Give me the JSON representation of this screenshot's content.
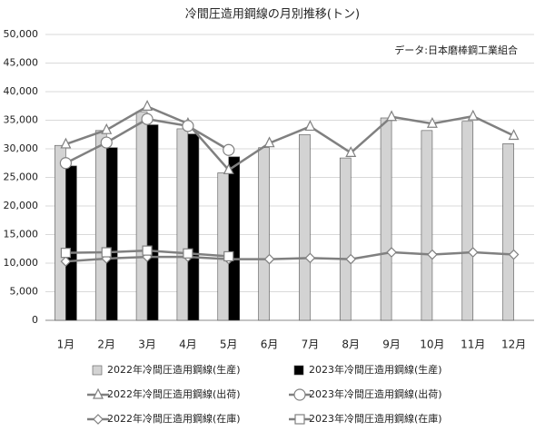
{
  "chart_data": {
    "type": "bar",
    "title": "冷間圧造用鋼線の月別推移(トン)",
    "annotation": "データ:日本磨棒鋼工業組合",
    "categories": [
      "1月",
      "2月",
      "3月",
      "4月",
      "5月",
      "6月",
      "7月",
      "8月",
      "9月",
      "10月",
      "11月",
      "12月"
    ],
    "ylim": [
      0,
      50000
    ],
    "yticks": [
      0,
      {
        "value": 5000,
        "label": "5,000"
      },
      {
        "value": 10000,
        "label": "10,000"
      },
      {
        "value": 15000,
        "label": "15,000"
      },
      {
        "value": 20000,
        "label": "20,000"
      },
      {
        "value": 25000,
        "label": "25,000"
      },
      {
        "value": 30000,
        "label": "30,000"
      },
      {
        "value": 35000,
        "label": "35,000"
      },
      {
        "value": 40000,
        "label": "40,000"
      },
      {
        "value": 45000,
        "label": "45,000"
      },
      {
        "value": 50000,
        "label": "50,000"
      }
    ],
    "grid": true,
    "legend": "bottom",
    "series": [
      {
        "name": "2022年冷間圧造用鋼線(生産)",
        "type": "bar",
        "color": "#d3d3d3",
        "values": [
          30600,
          33200,
          36500,
          33500,
          25800,
          30200,
          32500,
          28400,
          35400,
          33200,
          34800,
          30900
        ]
      },
      {
        "name": "2023年冷間圧造用鋼線(生産)",
        "type": "bar",
        "color": "#000000",
        "values": [
          27000,
          30200,
          34200,
          32600,
          28600,
          null,
          null,
          null,
          null,
          null,
          null,
          null
        ]
      },
      {
        "name": "2022年冷間圧造用鋼線(出荷)",
        "type": "line",
        "marker": "triangle",
        "color": "#808080",
        "values": [
          30800,
          33300,
          37400,
          34400,
          26300,
          31000,
          33900,
          29300,
          35600,
          34400,
          35700,
          32300
        ]
      },
      {
        "name": "2023年冷間圧造用鋼線(出荷)",
        "type": "line",
        "marker": "circle",
        "color": "#808080",
        "values": [
          27500,
          31100,
          35200,
          34000,
          29800,
          null,
          null,
          null,
          null,
          null,
          null,
          null
        ]
      },
      {
        "name": "2022年冷間圧造用鋼線(在庫)",
        "type": "line",
        "marker": "diamond",
        "color": "#808080",
        "values": [
          10300,
          10800,
          11100,
          11100,
          10700,
          10700,
          10900,
          10700,
          11900,
          11500,
          11900,
          11500
        ]
      },
      {
        "name": "2023年冷間圧造用鋼線(在庫)",
        "type": "line",
        "marker": "square",
        "color": "#808080",
        "values": [
          11800,
          11900,
          12200,
          11700,
          11200,
          null,
          null,
          null,
          null,
          null,
          null,
          null
        ]
      }
    ]
  }
}
